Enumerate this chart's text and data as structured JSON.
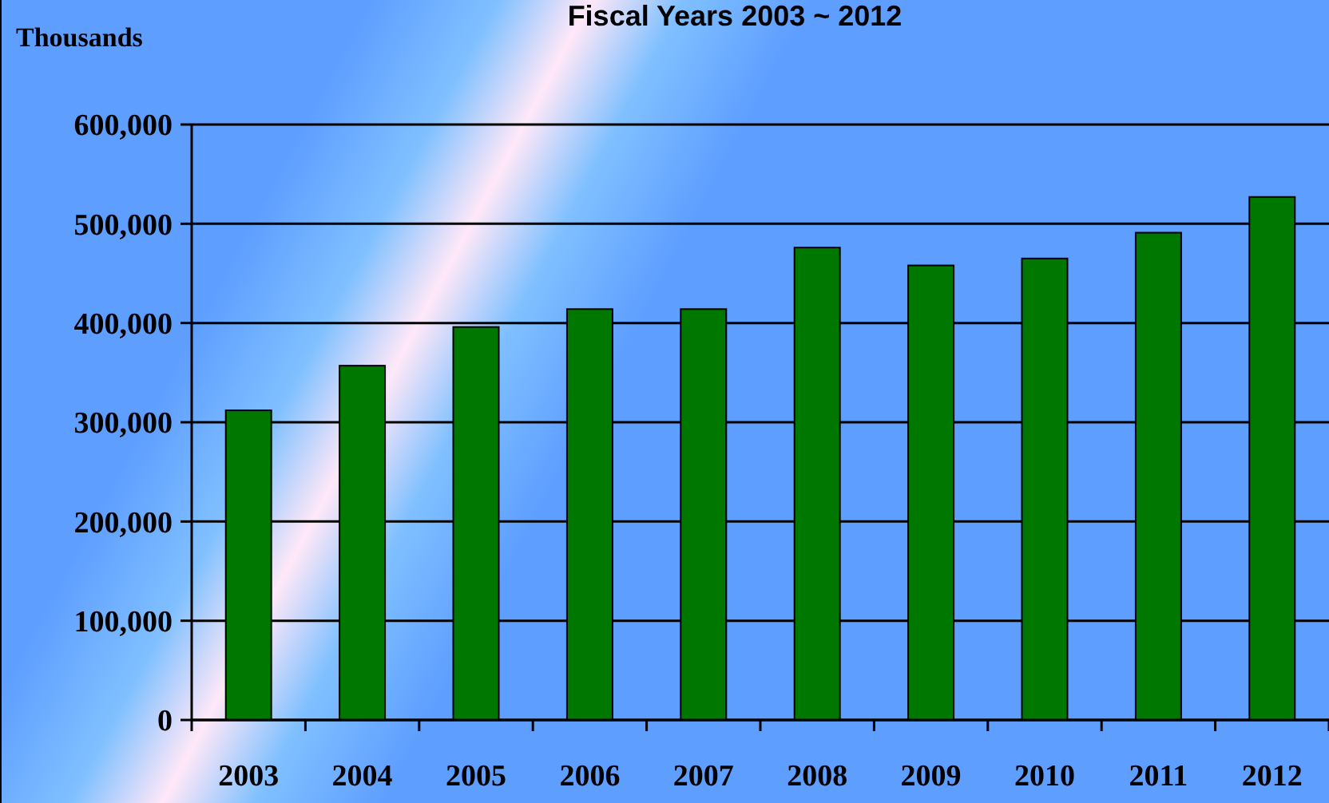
{
  "chart_data": {
    "type": "bar",
    "title": "Fiscal Years 2003 ~ 2012",
    "ylabel": "Thousands",
    "categories": [
      "2003",
      "2004",
      "2005",
      "2006",
      "2007",
      "2008",
      "2009",
      "2010",
      "2011",
      "2012"
    ],
    "values": [
      312000,
      357000,
      396000,
      414000,
      414000,
      476000,
      458000,
      465000,
      491000,
      527000
    ],
    "color": "#007800",
    "ylim": [
      0,
      600000
    ],
    "yticks": [
      {
        "value": 0,
        "label": "0"
      },
      {
        "value": 100000,
        "label": "100,000"
      },
      {
        "value": 200000,
        "label": "200,000"
      },
      {
        "value": 300000,
        "label": "300,000"
      },
      {
        "value": 400000,
        "label": "400,000"
      },
      {
        "value": 500000,
        "label": "500,000"
      },
      {
        "value": 600000,
        "label": "600,000"
      }
    ],
    "grid": "y"
  }
}
